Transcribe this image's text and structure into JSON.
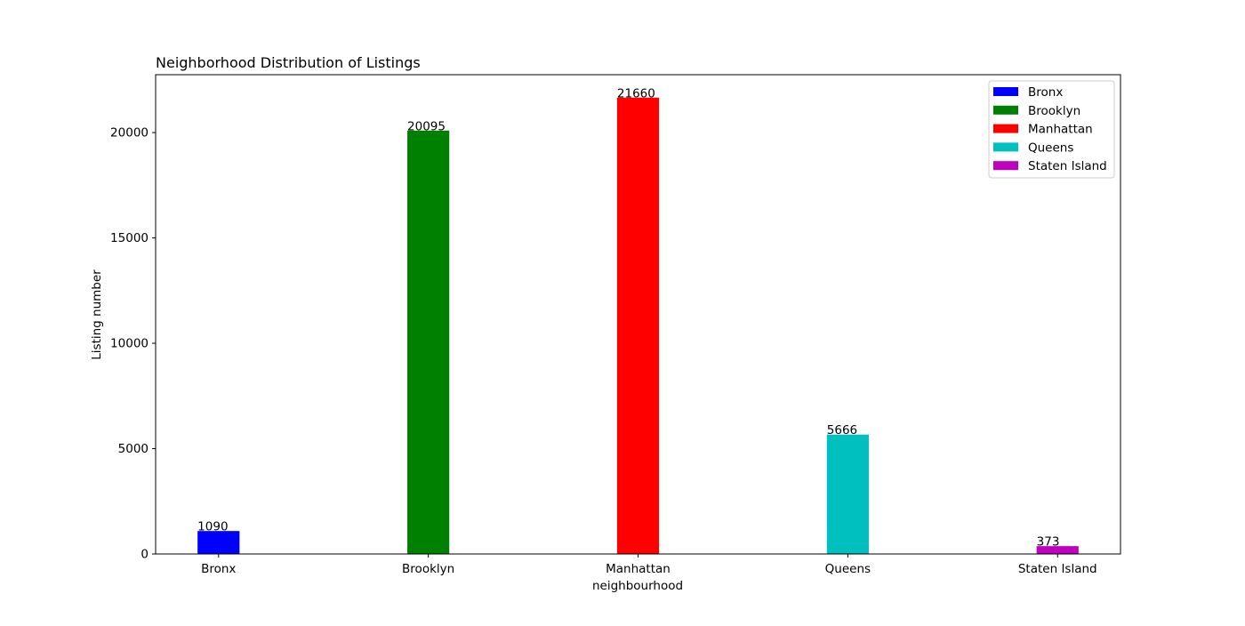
{
  "chart_data": {
    "type": "bar",
    "title": "Neighborhood Distribution of Listings",
    "xlabel": "neighbourhood",
    "ylabel": "Listing number",
    "categories": [
      "Bronx",
      "Brooklyn",
      "Manhattan",
      "Queens",
      "Staten Island"
    ],
    "values": [
      1090,
      20095,
      21660,
      5666,
      373
    ],
    "colors": [
      "#0000ff",
      "#008000",
      "#ff0000",
      "#00bfbf",
      "#bf00bf"
    ],
    "ylim": [
      0,
      22747
    ],
    "yticks": [
      0,
      5000,
      10000,
      15000,
      20000
    ],
    "legend": {
      "placement": "top-right",
      "entries": [
        "Bronx",
        "Brooklyn",
        "Manhattan",
        "Queens",
        "Staten Island"
      ]
    },
    "grid": false
  }
}
